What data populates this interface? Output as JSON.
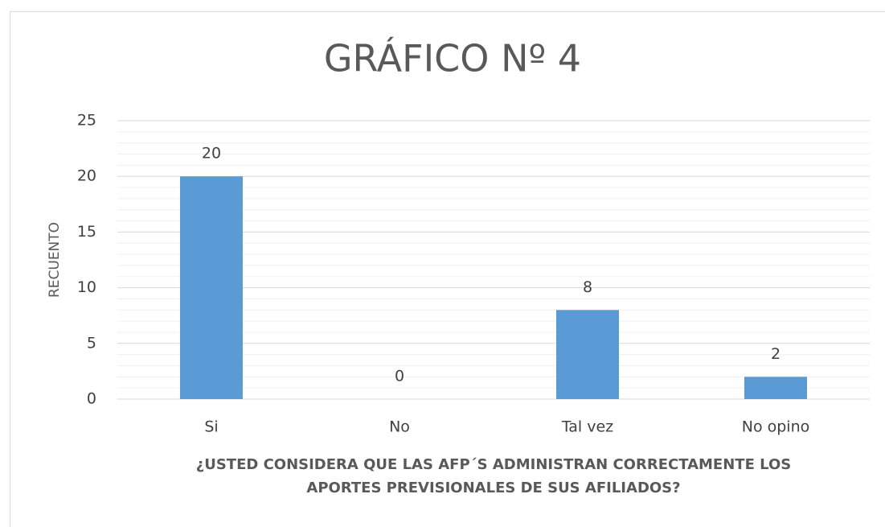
{
  "chart_data": {
    "type": "bar",
    "title": "GRÁFICO Nº 4",
    "y_label": "RECUENTO",
    "x_label": [
      "¿USTED CONSIDERA QUE LAS AFP´S ADMINISTRAN CORRECTAMENTE LOS",
      "APORTES PREVISIONALES DE SUS AFILIADOS?"
    ],
    "categories": [
      "Si",
      "No",
      "Tal vez",
      "No opino"
    ],
    "values": [
      20,
      0,
      8,
      2
    ],
    "color": "#5b9bd5",
    "ylim": [
      0,
      25
    ],
    "yticks": [
      0,
      5,
      10,
      15,
      20,
      25
    ],
    "grid": true,
    "minor_grid": true,
    "data_labels": true
  }
}
